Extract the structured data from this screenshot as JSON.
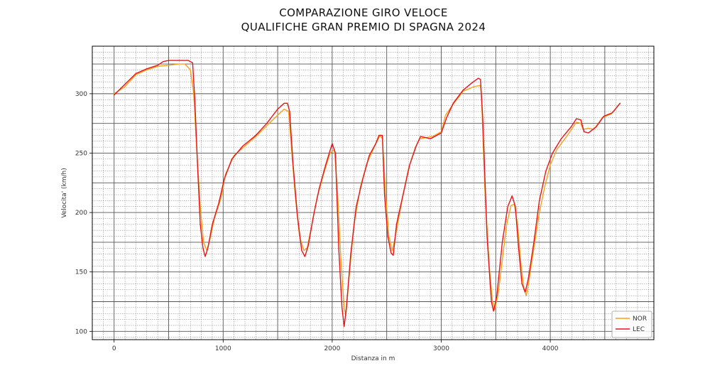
{
  "chart_data": {
    "type": "line",
    "title_line1": "COMPARAZIONE GIRO VELOCE",
    "title_line2": "QUALIFICHE GRAN PREMIO DI SPAGNA 2024",
    "xlabel": "Distanza in m",
    "ylabel": "Velocita' (km/h)",
    "xlim": [
      -200,
      4950
    ],
    "ylim": [
      93,
      340
    ],
    "xticks": [
      0,
      1000,
      2000,
      3000,
      4000
    ],
    "xtick_labels": [
      "0",
      "1000",
      "2000",
      "3000",
      "4000"
    ],
    "yticks": [
      100,
      150,
      200,
      250,
      300
    ],
    "ytick_labels": [
      "100",
      "150",
      "200",
      "250",
      "300"
    ],
    "grid": true,
    "legend_position": "bottom-right",
    "series": [
      {
        "name": "NOR",
        "color": "#f5a21b",
        "points": [
          [
            0,
            300
          ],
          [
            100,
            306
          ],
          [
            200,
            316
          ],
          [
            300,
            320
          ],
          [
            400,
            323
          ],
          [
            500,
            324
          ],
          [
            600,
            325
          ],
          [
            650,
            325
          ],
          [
            700,
            320
          ],
          [
            730,
            300
          ],
          [
            760,
            250
          ],
          [
            790,
            205
          ],
          [
            820,
            175
          ],
          [
            850,
            168
          ],
          [
            880,
            178
          ],
          [
            920,
            195
          ],
          [
            980,
            212
          ],
          [
            1020,
            232
          ],
          [
            1100,
            248
          ],
          [
            1200,
            256
          ],
          [
            1300,
            264
          ],
          [
            1400,
            273
          ],
          [
            1500,
            282
          ],
          [
            1560,
            287
          ],
          [
            1600,
            285
          ],
          [
            1620,
            262
          ],
          [
            1660,
            215
          ],
          [
            1700,
            180
          ],
          [
            1740,
            168
          ],
          [
            1770,
            170
          ],
          [
            1810,
            188
          ],
          [
            1860,
            212
          ],
          [
            1920,
            232
          ],
          [
            1980,
            250
          ],
          [
            2020,
            253
          ],
          [
            2050,
            215
          ],
          [
            2080,
            160
          ],
          [
            2110,
            120
          ],
          [
            2125,
            113
          ],
          [
            2150,
            140
          ],
          [
            2200,
            190
          ],
          [
            2260,
            222
          ],
          [
            2320,
            242
          ],
          [
            2400,
            258
          ],
          [
            2440,
            265
          ],
          [
            2460,
            262
          ],
          [
            2490,
            215
          ],
          [
            2520,
            180
          ],
          [
            2550,
            168
          ],
          [
            2580,
            180
          ],
          [
            2640,
            210
          ],
          [
            2700,
            237
          ],
          [
            2760,
            254
          ],
          [
            2800,
            262
          ],
          [
            2860,
            263
          ],
          [
            2920,
            264
          ],
          [
            3000,
            268
          ],
          [
            3040,
            282
          ],
          [
            3100,
            290
          ],
          [
            3200,
            302
          ],
          [
            3300,
            306
          ],
          [
            3360,
            307
          ],
          [
            3370,
            296
          ],
          [
            3400,
            220
          ],
          [
            3440,
            155
          ],
          [
            3470,
            125
          ],
          [
            3490,
            118
          ],
          [
            3520,
            130
          ],
          [
            3560,
            160
          ],
          [
            3600,
            190
          ],
          [
            3640,
            206
          ],
          [
            3670,
            207
          ],
          [
            3700,
            190
          ],
          [
            3730,
            158
          ],
          [
            3760,
            135
          ],
          [
            3780,
            130
          ],
          [
            3800,
            140
          ],
          [
            3850,
            170
          ],
          [
            3900,
            200
          ],
          [
            3950,
            222
          ],
          [
            4000,
            240
          ],
          [
            4060,
            253
          ],
          [
            4150,
            264
          ],
          [
            4240,
            276
          ],
          [
            4280,
            275
          ],
          [
            4300,
            270
          ],
          [
            4350,
            271
          ],
          [
            4400,
            270
          ],
          [
            4480,
            280
          ],
          [
            4560,
            283
          ],
          [
            4640,
            292
          ]
        ]
      },
      {
        "name": "LEC",
        "color": "#e8141b",
        "points": [
          [
            0,
            299
          ],
          [
            100,
            308
          ],
          [
            200,
            317
          ],
          [
            300,
            321
          ],
          [
            400,
            324
          ],
          [
            450,
            327
          ],
          [
            500,
            328
          ],
          [
            600,
            328
          ],
          [
            680,
            328
          ],
          [
            720,
            326
          ],
          [
            740,
            295
          ],
          [
            765,
            240
          ],
          [
            790,
            190
          ],
          [
            815,
            170
          ],
          [
            835,
            163
          ],
          [
            860,
            170
          ],
          [
            900,
            190
          ],
          [
            960,
            208
          ],
          [
            1010,
            228
          ],
          [
            1080,
            245
          ],
          [
            1180,
            256
          ],
          [
            1300,
            265
          ],
          [
            1400,
            275
          ],
          [
            1500,
            287
          ],
          [
            1560,
            292
          ],
          [
            1590,
            292
          ],
          [
            1610,
            285
          ],
          [
            1640,
            242
          ],
          [
            1680,
            198
          ],
          [
            1720,
            168
          ],
          [
            1750,
            163
          ],
          [
            1780,
            172
          ],
          [
            1830,
            198
          ],
          [
            1880,
            220
          ],
          [
            1940,
            240
          ],
          [
            1980,
            252
          ],
          [
            2000,
            258
          ],
          [
            2030,
            250
          ],
          [
            2060,
            170
          ],
          [
            2090,
            120
          ],
          [
            2110,
            104
          ],
          [
            2130,
            120
          ],
          [
            2170,
            165
          ],
          [
            2220,
            205
          ],
          [
            2280,
            228
          ],
          [
            2340,
            248
          ],
          [
            2400,
            258
          ],
          [
            2430,
            265
          ],
          [
            2460,
            265
          ],
          [
            2480,
            215
          ],
          [
            2510,
            180
          ],
          [
            2540,
            166
          ],
          [
            2560,
            164
          ],
          [
            2590,
            190
          ],
          [
            2650,
            215
          ],
          [
            2710,
            240
          ],
          [
            2770,
            256
          ],
          [
            2810,
            264
          ],
          [
            2860,
            263
          ],
          [
            2900,
            262
          ],
          [
            2960,
            265
          ],
          [
            3000,
            267
          ],
          [
            3050,
            280
          ],
          [
            3110,
            292
          ],
          [
            3200,
            303
          ],
          [
            3280,
            309
          ],
          [
            3340,
            313
          ],
          [
            3360,
            312
          ],
          [
            3380,
            280
          ],
          [
            3420,
            180
          ],
          [
            3460,
            125
          ],
          [
            3480,
            117
          ],
          [
            3510,
            130
          ],
          [
            3560,
            175
          ],
          [
            3610,
            205
          ],
          [
            3650,
            214
          ],
          [
            3680,
            205
          ],
          [
            3710,
            170
          ],
          [
            3740,
            140
          ],
          [
            3770,
            133
          ],
          [
            3800,
            145
          ],
          [
            3850,
            175
          ],
          [
            3900,
            210
          ],
          [
            3960,
            235
          ],
          [
            4020,
            250
          ],
          [
            4100,
            262
          ],
          [
            4190,
            272
          ],
          [
            4240,
            279
          ],
          [
            4280,
            278
          ],
          [
            4310,
            268
          ],
          [
            4350,
            267
          ],
          [
            4420,
            272
          ],
          [
            4490,
            281
          ],
          [
            4570,
            284
          ],
          [
            4640,
            292
          ]
        ]
      }
    ]
  }
}
